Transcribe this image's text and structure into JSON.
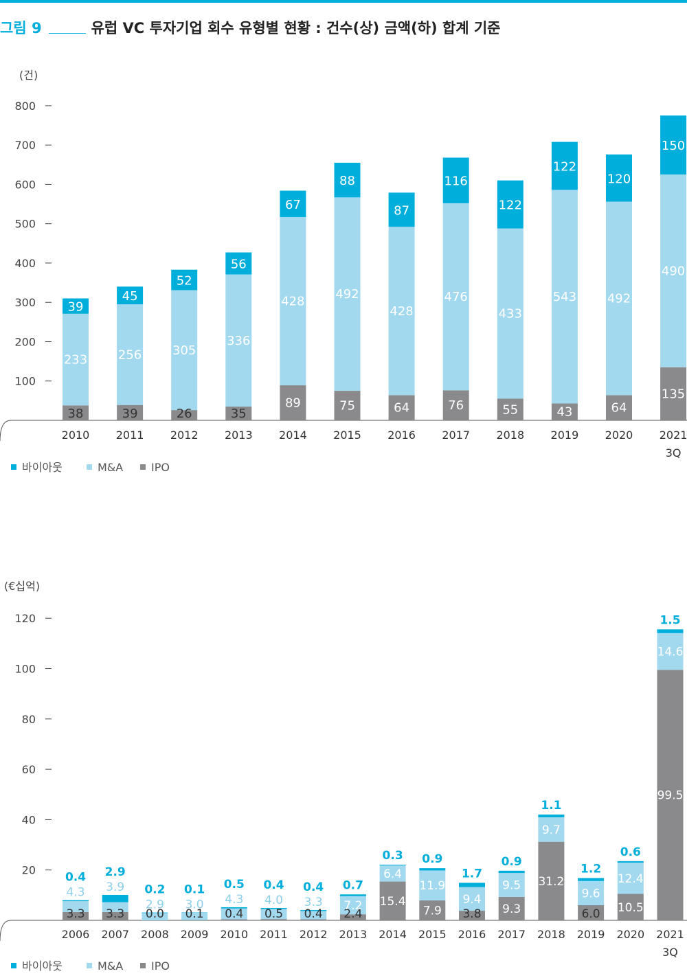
{
  "header": {
    "figure_number": "그림 9",
    "title": "유럽 VC 투자기업 회수 유형별 현황 : 건수(상) 금액(하) 합계 기준"
  },
  "colors": {
    "buyout": "#00aedb",
    "mna": "#a3d9ef",
    "ipo": "#8a8a8c",
    "axis": "#555555",
    "buyout_label": "#00aedb",
    "mna_label_small": "#8ccfe9"
  },
  "chart_data": [
    {
      "type": "bar",
      "stacked": true,
      "unit_label": "(건)",
      "ylim": [
        0,
        800
      ],
      "yticks": [
        100,
        200,
        300,
        400,
        500,
        600,
        700,
        800
      ],
      "categories": [
        "2010",
        "2011",
        "2012",
        "2013",
        "2014",
        "2015",
        "2016",
        "2017",
        "2018",
        "2019",
        "2020",
        "2021\n3Q"
      ],
      "series": [
        {
          "name": "IPO",
          "values": [
            38,
            39,
            26,
            35,
            89,
            75,
            64,
            76,
            55,
            43,
            64,
            135
          ]
        },
        {
          "name": "M&A",
          "values": [
            233,
            256,
            305,
            336,
            428,
            492,
            428,
            476,
            433,
            543,
            492,
            490
          ]
        },
        {
          "name": "바이아웃",
          "values": [
            39,
            45,
            52,
            56,
            67,
            88,
            87,
            116,
            122,
            122,
            120,
            150
          ]
        }
      ],
      "legend": [
        "바이아웃",
        "M&A",
        "IPO"
      ],
      "legend_position": "bottom-left"
    },
    {
      "type": "bar",
      "stacked": true,
      "unit_label": "(€십억)",
      "ylim": [
        0,
        120
      ],
      "yticks": [
        20,
        40,
        60,
        80,
        100,
        120
      ],
      "categories": [
        "2006",
        "2007",
        "2008",
        "2009",
        "2010",
        "2011",
        "2012",
        "2013",
        "2014",
        "2015",
        "2016",
        "2017",
        "2018",
        "2019",
        "2020",
        "2021\n3Q"
      ],
      "series": [
        {
          "name": "IPO",
          "values": [
            3.3,
            3.3,
            0.0,
            0.1,
            0.4,
            0.5,
            0.4,
            2.4,
            15.4,
            7.9,
            3.8,
            9.3,
            31.2,
            6.0,
            10.5,
            99.5
          ]
        },
        {
          "name": "M&A",
          "values": [
            4.3,
            3.9,
            2.9,
            3.0,
            4.3,
            4.0,
            3.3,
            7.2,
            6.4,
            11.9,
            9.4,
            9.5,
            9.7,
            9.6,
            12.4,
            14.6
          ]
        },
        {
          "name": "바이아웃",
          "values": [
            0.4,
            2.9,
            0.2,
            0.1,
            0.5,
            0.4,
            0.4,
            0.7,
            0.3,
            0.9,
            1.7,
            0.9,
            1.1,
            1.2,
            0.6,
            1.5
          ]
        }
      ],
      "legend": [
        "바이아웃",
        "M&A",
        "IPO"
      ],
      "legend_position": "bottom-left"
    }
  ]
}
